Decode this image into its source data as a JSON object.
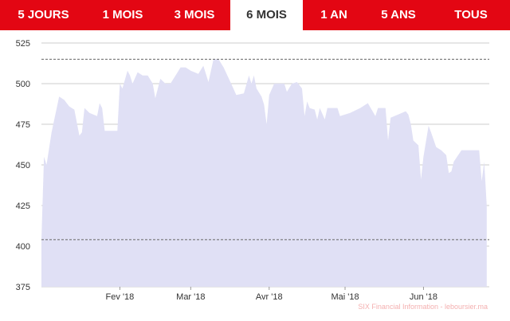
{
  "tabs": [
    {
      "label": "5 JOURS",
      "active": false
    },
    {
      "label": "1 MOIS",
      "active": false
    },
    {
      "label": "3 MOIS",
      "active": false
    },
    {
      "label": "6 MOIS",
      "active": true
    },
    {
      "label": "1 AN",
      "active": false
    },
    {
      "label": "5 ANS",
      "active": false
    },
    {
      "label": "TOUS",
      "active": false
    }
  ],
  "colors": {
    "accent": "#e30613",
    "area_fill": "#e0e0f5",
    "grid": "#cccccc",
    "reference_line": "#666666"
  },
  "credit": "SIX Financial Information - leboursier.ma",
  "chart_data": {
    "type": "area",
    "ylim": [
      375,
      525
    ],
    "yticks": [
      375,
      400,
      425,
      450,
      475,
      500,
      525
    ],
    "grid": true,
    "reference_lines": [
      515,
      404
    ],
    "x_tick_labels": [
      {
        "label": "Fev '18",
        "date": "2018-02-01"
      },
      {
        "label": "Mar '18",
        "date": "2018-03-01"
      },
      {
        "label": "Avr '18",
        "date": "2018-04-01"
      },
      {
        "label": "Mai '18",
        "date": "2018-05-01"
      },
      {
        "label": "Jun '18",
        "date": "2018-06-01"
      }
    ],
    "x_range": [
      "2018-01-01",
      "2018-06-27"
    ],
    "points": [
      [
        "2018-01-01",
        404
      ],
      [
        "2018-01-02",
        455
      ],
      [
        "2018-01-03",
        450
      ],
      [
        "2018-01-05",
        470
      ],
      [
        "2018-01-08",
        492
      ],
      [
        "2018-01-10",
        490
      ],
      [
        "2018-01-12",
        486
      ],
      [
        "2018-01-14",
        484
      ],
      [
        "2018-01-16",
        468
      ],
      [
        "2018-01-17",
        470
      ],
      [
        "2018-01-18",
        485
      ],
      [
        "2018-01-20",
        482
      ],
      [
        "2018-01-23",
        480
      ],
      [
        "2018-01-24",
        488
      ],
      [
        "2018-01-25",
        485
      ],
      [
        "2018-01-26",
        471
      ],
      [
        "2018-01-29",
        471
      ],
      [
        "2018-01-31",
        471
      ],
      [
        "2018-02-01",
        500
      ],
      [
        "2018-02-02",
        497
      ],
      [
        "2018-02-04",
        508
      ],
      [
        "2018-02-05",
        505
      ],
      [
        "2018-02-06",
        500
      ],
      [
        "2018-02-08",
        507
      ],
      [
        "2018-02-10",
        505
      ],
      [
        "2018-02-12",
        505
      ],
      [
        "2018-02-14",
        500
      ],
      [
        "2018-02-15",
        491
      ],
      [
        "2018-02-17",
        503
      ],
      [
        "2018-02-19",
        500
      ],
      [
        "2018-02-21",
        500
      ],
      [
        "2018-02-23",
        505
      ],
      [
        "2018-02-25",
        510
      ],
      [
        "2018-02-27",
        510
      ],
      [
        "2018-03-01",
        508
      ],
      [
        "2018-03-04",
        506
      ],
      [
        "2018-03-06",
        511
      ],
      [
        "2018-03-08",
        501
      ],
      [
        "2018-03-10",
        515
      ],
      [
        "2018-03-12",
        515
      ],
      [
        "2018-03-14",
        510
      ],
      [
        "2018-03-17",
        500
      ],
      [
        "2018-03-19",
        493
      ],
      [
        "2018-03-22",
        494
      ],
      [
        "2018-03-24",
        505
      ],
      [
        "2018-03-25",
        500
      ],
      [
        "2018-03-26",
        505
      ],
      [
        "2018-03-27",
        497
      ],
      [
        "2018-03-29",
        492
      ],
      [
        "2018-03-30",
        487
      ],
      [
        "2018-03-31",
        475
      ],
      [
        "2018-04-01",
        493
      ],
      [
        "2018-04-03",
        500
      ],
      [
        "2018-04-05",
        500
      ],
      [
        "2018-04-07",
        500
      ],
      [
        "2018-04-08",
        495
      ],
      [
        "2018-04-10",
        500
      ],
      [
        "2018-04-12",
        501
      ],
      [
        "2018-04-14",
        497
      ],
      [
        "2018-04-15",
        480
      ],
      [
        "2018-04-16",
        489
      ],
      [
        "2018-04-17",
        485
      ],
      [
        "2018-04-19",
        484
      ],
      [
        "2018-04-20",
        478
      ],
      [
        "2018-04-21",
        485
      ],
      [
        "2018-04-23",
        478
      ],
      [
        "2018-04-24",
        485
      ],
      [
        "2018-04-26",
        485
      ],
      [
        "2018-04-28",
        485
      ],
      [
        "2018-04-29",
        480
      ],
      [
        "2018-05-03",
        482
      ],
      [
        "2018-05-07",
        485
      ],
      [
        "2018-05-10",
        488
      ],
      [
        "2018-05-13",
        480
      ],
      [
        "2018-05-14",
        485
      ],
      [
        "2018-05-17",
        485
      ],
      [
        "2018-05-18",
        465
      ],
      [
        "2018-05-19",
        479
      ],
      [
        "2018-05-22",
        481
      ],
      [
        "2018-05-25",
        483
      ],
      [
        "2018-05-26",
        481
      ],
      [
        "2018-05-27",
        475
      ],
      [
        "2018-05-28",
        465
      ],
      [
        "2018-05-30",
        462
      ],
      [
        "2018-05-31",
        441
      ],
      [
        "2018-06-01",
        455
      ],
      [
        "2018-06-03",
        474
      ],
      [
        "2018-06-04",
        470
      ],
      [
        "2018-06-06",
        461
      ],
      [
        "2018-06-08",
        459
      ],
      [
        "2018-06-10",
        456
      ],
      [
        "2018-06-11",
        445
      ],
      [
        "2018-06-12",
        446
      ],
      [
        "2018-06-13",
        452
      ],
      [
        "2018-06-16",
        459
      ],
      [
        "2018-06-20",
        459
      ],
      [
        "2018-06-23",
        459
      ],
      [
        "2018-06-24",
        440
      ],
      [
        "2018-06-25",
        452
      ],
      [
        "2018-06-26",
        425
      ]
    ]
  }
}
